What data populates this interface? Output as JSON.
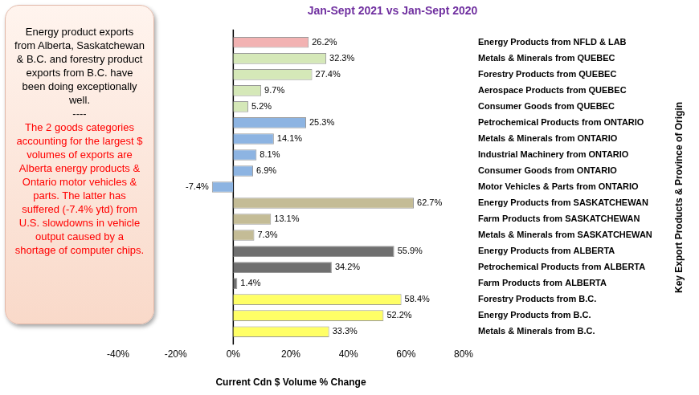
{
  "chart_data": {
    "type": "bar",
    "orientation": "horizontal",
    "title": "Jan-Sept 2021 vs Jan-Sept 2020",
    "x_label": "Current Cdn $ Volume % Change",
    "y_label": "Key Export Products & Province of Origin",
    "categories": [
      "Energy Products from NFLD & LAB",
      "Metals & Minerals from QUEBEC",
      "Forestry Products from QUEBEC",
      "Aerospace Products from QUEBEC",
      "Consumer Goods from QUEBEC",
      "Petrochemical Products from ONTARIO",
      "Metals & Minerals from ONTARIO",
      "Industrial Machinery from ONTARIO",
      "Consumer Goods from ONTARIO",
      "Motor Vehicles & Parts from ONTARIO",
      "Energy Products from SASKATCHEWAN",
      "Farm Products from SASKATCHEWAN",
      "Metals & Minerals from SASKATCHEWAN",
      "Energy Products from ALBERTA",
      "Petrochemical Products from ALBERTA",
      "Farm Products from ALBERTA",
      "Forestry Products from B.C.",
      "Energy Products from B.C.",
      "Metals & Minerals from B.C."
    ],
    "values": [
      26.2,
      32.3,
      27.4,
      9.7,
      5.2,
      25.3,
      14.1,
      8.1,
      6.9,
      -7.4,
      62.7,
      13.1,
      7.3,
      55.9,
      34.2,
      1.4,
      58.4,
      52.2,
      33.3
    ],
    "value_labels": [
      "26.2%",
      "32.3%",
      "27.4%",
      "9.7%",
      "5.2%",
      "25.3%",
      "14.1%",
      "8.1%",
      "6.9%",
      "-7.4%",
      "62.7%",
      "13.1%",
      "7.3%",
      "55.9%",
      "34.2%",
      "1.4%",
      "58.4%",
      "52.2%",
      "33.3%"
    ],
    "colors": [
      "#f2b2b2",
      "#d5e8b8",
      "#d5e8b8",
      "#d5e8b8",
      "#d5e8b8",
      "#8db4e2",
      "#8db4e2",
      "#8db4e2",
      "#8db4e2",
      "#8db4e2",
      "#c4bc96",
      "#c4bc96",
      "#c4bc96",
      "#6f6f6f",
      "#6f6f6f",
      "#6f6f6f",
      "#ffff66",
      "#ffff66",
      "#ffff66"
    ],
    "xlim": [
      -40,
      80
    ],
    "xticks": [
      {
        "value": -40,
        "label": "-40%"
      },
      {
        "value": -20,
        "label": "-20%"
      },
      {
        "value": 0,
        "label": "0%"
      },
      {
        "value": 20,
        "label": "20%"
      },
      {
        "value": 40,
        "label": "40%"
      },
      {
        "value": 60,
        "label": "60%"
      },
      {
        "value": 80,
        "label": "80%"
      }
    ],
    "grid": false,
    "data_labels": true,
    "annotations": [
      {
        "text": "Energy product exports from Alberta, Saskatchewan & B.C. and forestry product exports from B.C. have been doing exceptionally well.",
        "color": "#000000"
      },
      {
        "text": "----",
        "color": "#000000"
      },
      {
        "text": "The 2 goods categories accounting for the largest $ volumes of exports are Alberta energy products & Ontario motor vehicles & parts. The latter has suffered (-7.4% ytd) from U.S. slowdowns in vehicle output caused by a shortage of computer chips.",
        "color": "#ff0000"
      }
    ]
  }
}
